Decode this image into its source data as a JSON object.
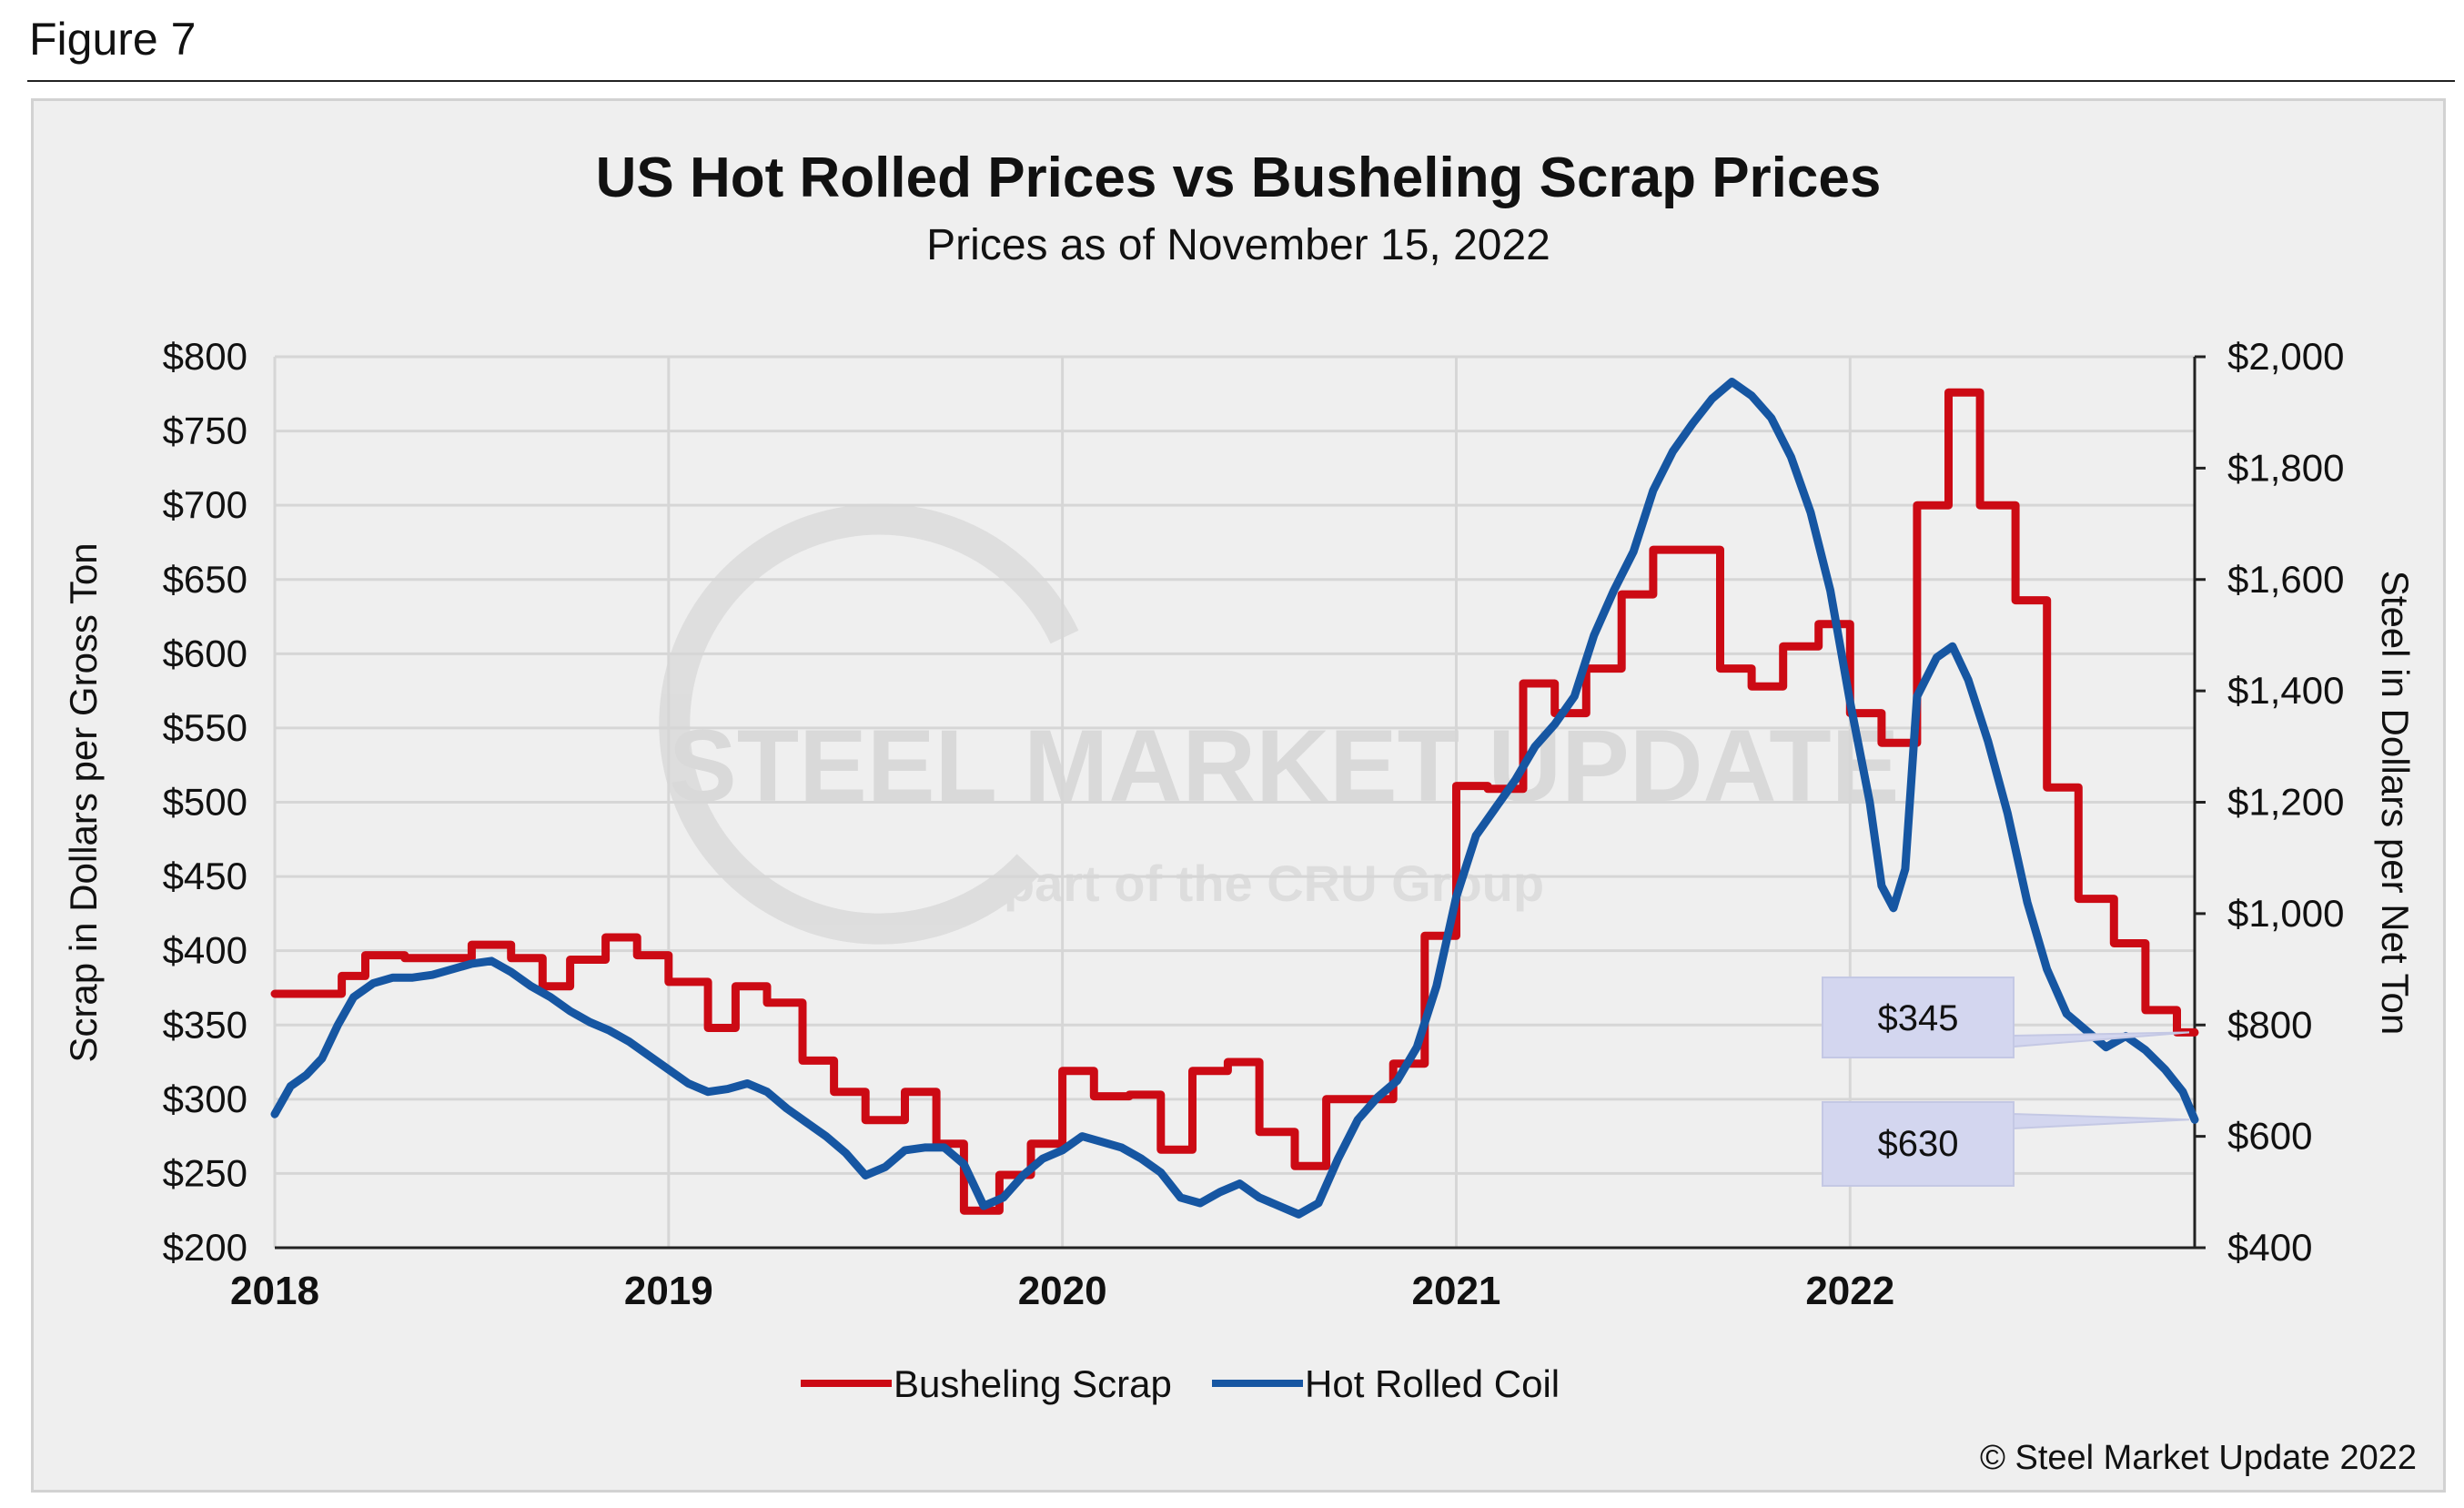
{
  "figure_label": "Figure 7",
  "copyright": "© Steel Market Update 2022",
  "watermark": {
    "brand": "STEEL MARKET UPDATE",
    "tagline": "part of the CRU Group"
  },
  "colors": {
    "scrap": "#cc0a14",
    "hrc": "#1656a2",
    "callout_fill": "#d3d6ef",
    "grid": "#d6d6d6"
  },
  "chart_data": {
    "type": "line",
    "title": "US Hot Rolled Prices vs Busheling Scrap Prices",
    "subtitle": "Prices as of November 15, 2022",
    "ylabel_left": "Scrap in Dollars per Gross Ton",
    "ylabel_right": "Steel in Dollars per Net Ton",
    "xlim": [
      2018.0,
      2022.875
    ],
    "ylim_left": [
      200,
      800
    ],
    "ylim_right": [
      400,
      2000
    ],
    "x_ticks": [
      2018,
      2019,
      2020,
      2021,
      2022
    ],
    "x_tick_labels": [
      "2018",
      "2019",
      "2020",
      "2021",
      "2022"
    ],
    "y_ticks_left": [
      200,
      250,
      300,
      350,
      400,
      450,
      500,
      550,
      600,
      650,
      700,
      750,
      800
    ],
    "y_tick_labels_left": [
      "$200",
      "$250",
      "$300",
      "$350",
      "$400",
      "$450",
      "$500",
      "$550",
      "$600",
      "$650",
      "$700",
      "$750",
      "$800"
    ],
    "y_ticks_right": [
      400,
      600,
      800,
      1000,
      1200,
      1400,
      1600,
      1800,
      2000
    ],
    "y_tick_labels_right": [
      "$400",
      "$600",
      "$800",
      "$1,000",
      "$1,200",
      "$1,400",
      "$1,600",
      "$1,800",
      "$2,000"
    ],
    "grid": true,
    "legend_position": "bottom-center",
    "series": [
      {
        "name": "Busheling Scrap",
        "axis": "left",
        "step": true,
        "points": [
          [
            2018.0,
            371
          ],
          [
            2018.17,
            383
          ],
          [
            2018.23,
            397
          ],
          [
            2018.33,
            395
          ],
          [
            2018.5,
            404
          ],
          [
            2018.6,
            395
          ],
          [
            2018.68,
            376
          ],
          [
            2018.75,
            394
          ],
          [
            2018.84,
            409
          ],
          [
            2018.92,
            397
          ],
          [
            2019.0,
            379
          ],
          [
            2019.1,
            348
          ],
          [
            2019.17,
            376
          ],
          [
            2019.25,
            365
          ],
          [
            2019.34,
            326
          ],
          [
            2019.42,
            305
          ],
          [
            2019.5,
            286
          ],
          [
            2019.6,
            305
          ],
          [
            2019.68,
            270
          ],
          [
            2019.75,
            225
          ],
          [
            2019.84,
            249
          ],
          [
            2019.92,
            270
          ],
          [
            2020.0,
            319
          ],
          [
            2020.08,
            302
          ],
          [
            2020.17,
            303
          ],
          [
            2020.25,
            266
          ],
          [
            2020.33,
            319
          ],
          [
            2020.42,
            325
          ],
          [
            2020.5,
            278
          ],
          [
            2020.59,
            255
          ],
          [
            2020.67,
            300
          ],
          [
            2020.84,
            324
          ],
          [
            2020.92,
            410
          ],
          [
            2021.0,
            511
          ],
          [
            2021.08,
            509
          ],
          [
            2021.17,
            580
          ],
          [
            2021.25,
            560
          ],
          [
            2021.33,
            590
          ],
          [
            2021.42,
            640
          ],
          [
            2021.5,
            670
          ],
          [
            2021.67,
            590
          ],
          [
            2021.75,
            578
          ],
          [
            2021.83,
            605
          ],
          [
            2021.92,
            620
          ],
          [
            2022.0,
            560
          ],
          [
            2022.08,
            540
          ],
          [
            2022.17,
            700
          ],
          [
            2022.25,
            776
          ],
          [
            2022.33,
            700
          ],
          [
            2022.42,
            636
          ],
          [
            2022.5,
            510
          ],
          [
            2022.58,
            435
          ],
          [
            2022.67,
            405
          ],
          [
            2022.75,
            360
          ],
          [
            2022.83,
            345
          ],
          [
            2022.875,
            345
          ]
        ]
      },
      {
        "name": "Hot Rolled Coil",
        "axis": "right",
        "step": false,
        "points": [
          [
            2018.0,
            640
          ],
          [
            2018.04,
            690
          ],
          [
            2018.08,
            710
          ],
          [
            2018.12,
            740
          ],
          [
            2018.16,
            800
          ],
          [
            2018.2,
            850
          ],
          [
            2018.25,
            875
          ],
          [
            2018.3,
            885
          ],
          [
            2018.35,
            885
          ],
          [
            2018.4,
            890
          ],
          [
            2018.45,
            900
          ],
          [
            2018.5,
            910
          ],
          [
            2018.55,
            915
          ],
          [
            2018.6,
            895
          ],
          [
            2018.65,
            870
          ],
          [
            2018.7,
            850
          ],
          [
            2018.75,
            825
          ],
          [
            2018.8,
            805
          ],
          [
            2018.85,
            790
          ],
          [
            2018.9,
            770
          ],
          [
            2018.95,
            745
          ],
          [
            2019.0,
            720
          ],
          [
            2019.05,
            695
          ],
          [
            2019.1,
            680
          ],
          [
            2019.15,
            685
          ],
          [
            2019.2,
            695
          ],
          [
            2019.25,
            680
          ],
          [
            2019.3,
            650
          ],
          [
            2019.35,
            625
          ],
          [
            2019.4,
            600
          ],
          [
            2019.45,
            570
          ],
          [
            2019.5,
            530
          ],
          [
            2019.55,
            545
          ],
          [
            2019.6,
            575
          ],
          [
            2019.65,
            580
          ],
          [
            2019.7,
            580
          ],
          [
            2019.75,
            550
          ],
          [
            2019.8,
            475
          ],
          [
            2019.85,
            490
          ],
          [
            2019.9,
            530
          ],
          [
            2019.95,
            560
          ],
          [
            2020.0,
            575
          ],
          [
            2020.05,
            600
          ],
          [
            2020.1,
            590
          ],
          [
            2020.15,
            580
          ],
          [
            2020.2,
            560
          ],
          [
            2020.25,
            535
          ],
          [
            2020.3,
            490
          ],
          [
            2020.35,
            480
          ],
          [
            2020.4,
            500
          ],
          [
            2020.45,
            515
          ],
          [
            2020.5,
            490
          ],
          [
            2020.55,
            475
          ],
          [
            2020.6,
            460
          ],
          [
            2020.65,
            480
          ],
          [
            2020.7,
            560
          ],
          [
            2020.75,
            630
          ],
          [
            2020.8,
            670
          ],
          [
            2020.85,
            700
          ],
          [
            2020.9,
            760
          ],
          [
            2020.95,
            870
          ],
          [
            2021.0,
            1030
          ],
          [
            2021.05,
            1140
          ],
          [
            2021.1,
            1190
          ],
          [
            2021.15,
            1240
          ],
          [
            2021.2,
            1300
          ],
          [
            2021.25,
            1340
          ],
          [
            2021.3,
            1390
          ],
          [
            2021.35,
            1500
          ],
          [
            2021.4,
            1580
          ],
          [
            2021.45,
            1650
          ],
          [
            2021.5,
            1760
          ],
          [
            2021.55,
            1830
          ],
          [
            2021.6,
            1880
          ],
          [
            2021.65,
            1925
          ],
          [
            2021.7,
            1955
          ],
          [
            2021.75,
            1930
          ],
          [
            2021.8,
            1890
          ],
          [
            2021.85,
            1820
          ],
          [
            2021.9,
            1720
          ],
          [
            2021.95,
            1580
          ],
          [
            2022.0,
            1380
          ],
          [
            2022.05,
            1200
          ],
          [
            2022.08,
            1050
          ],
          [
            2022.11,
            1010
          ],
          [
            2022.14,
            1080
          ],
          [
            2022.17,
            1390
          ],
          [
            2022.22,
            1460
          ],
          [
            2022.26,
            1480
          ],
          [
            2022.3,
            1420
          ],
          [
            2022.35,
            1310
          ],
          [
            2022.4,
            1180
          ],
          [
            2022.45,
            1020
          ],
          [
            2022.5,
            900
          ],
          [
            2022.55,
            820
          ],
          [
            2022.6,
            790
          ],
          [
            2022.65,
            760
          ],
          [
            2022.7,
            780
          ],
          [
            2022.75,
            755
          ],
          [
            2022.8,
            720
          ],
          [
            2022.845,
            680
          ],
          [
            2022.875,
            630
          ]
        ]
      }
    ],
    "annotations": [
      {
        "label": "$345",
        "series": "Busheling Scrap",
        "value": 345
      },
      {
        "label": "$630",
        "series": "Hot Rolled Coil",
        "value": 630
      }
    ]
  }
}
